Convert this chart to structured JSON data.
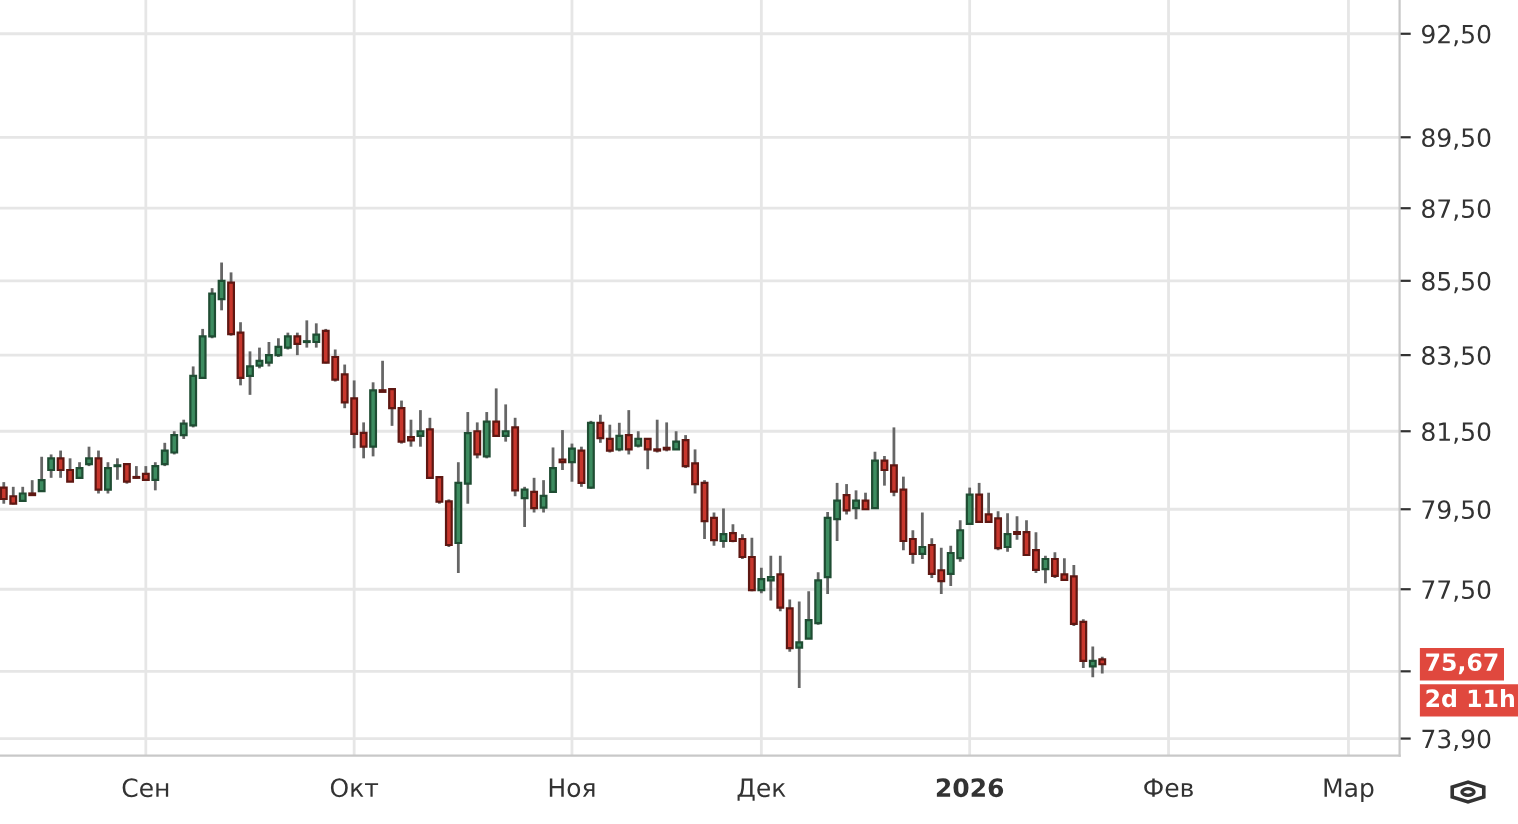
{
  "chart_data": {
    "type": "candlestick",
    "categories": [
      null,
      null,
      null,
      null,
      null,
      null,
      null,
      null,
      null,
      null,
      null,
      null,
      null,
      null,
      null,
      "Сен",
      null,
      null,
      null,
      null,
      null,
      null,
      null,
      null,
      null,
      null,
      null,
      null,
      null,
      null,
      null,
      null,
      null,
      null,
      null,
      null,
      null,
      "Окт",
      null,
      null,
      null,
      null,
      null,
      null,
      null,
      null,
      null,
      null,
      null,
      null,
      null,
      null,
      null,
      null,
      null,
      null,
      null,
      null,
      null,
      null,
      "Ноя",
      null,
      null,
      null,
      null,
      null,
      null,
      null,
      null,
      null,
      null,
      null,
      null,
      null,
      null,
      null,
      null,
      null,
      null,
      null,
      "Дек",
      null,
      null,
      null,
      null,
      null,
      null,
      null,
      null,
      null,
      null,
      null,
      null,
      null,
      null,
      null,
      null,
      null,
      null,
      null,
      null,
      null,
      "2026",
      null,
      null,
      null,
      null,
      null,
      null,
      null,
      null,
      null,
      null,
      null,
      null,
      null,
      null,
      null,
      null,
      null,
      null,
      null,
      null,
      "Фев",
      null,
      null,
      null,
      null,
      null,
      null,
      null,
      null,
      null,
      null,
      null,
      null,
      null,
      null,
      null,
      null,
      null,
      null,
      "Мар",
      null,
      null,
      null,
      null,
      null
    ],
    "ohlc": [
      [
        80.05,
        80.19,
        79.64,
        79.76
      ],
      [
        79.83,
        80.07,
        79.62,
        79.64
      ],
      [
        79.71,
        80.07,
        79.69,
        79.9
      ],
      [
        79.9,
        80.24,
        79.86,
        79.86
      ],
      [
        79.96,
        80.84,
        79.96,
        80.24
      ],
      [
        80.5,
        80.9,
        80.3,
        80.8
      ],
      [
        80.8,
        81.0,
        80.3,
        80.5
      ],
      [
        80.5,
        80.8,
        80.2,
        80.2
      ],
      [
        80.3,
        80.7,
        80.3,
        80.55
      ],
      [
        80.65,
        81.1,
        80.6,
        80.8
      ],
      [
        80.8,
        81.0,
        79.9,
        80.0
      ],
      [
        80.0,
        80.7,
        79.9,
        80.55
      ],
      [
        80.6,
        80.8,
        80.25,
        80.62
      ],
      [
        80.65,
        80.65,
        80.15,
        80.2
      ],
      [
        80.32,
        80.6,
        80.28,
        80.3
      ],
      [
        80.4,
        80.6,
        80.25,
        80.25
      ],
      [
        80.25,
        80.7,
        79.98,
        80.6
      ],
      [
        80.65,
        81.2,
        80.6,
        81.0
      ],
      [
        80.95,
        81.5,
        80.9,
        81.4
      ],
      [
        81.4,
        81.8,
        81.3,
        81.7
      ],
      [
        81.65,
        83.2,
        81.6,
        82.95
      ],
      [
        82.9,
        84.2,
        82.9,
        84.0
      ],
      [
        84.0,
        85.3,
        83.95,
        85.15
      ],
      [
        85.0,
        86.0,
        84.7,
        85.5
      ],
      [
        85.45,
        85.73,
        84.02,
        84.06
      ],
      [
        84.1,
        84.38,
        82.7,
        82.9
      ],
      [
        82.95,
        83.6,
        82.45,
        83.2
      ],
      [
        83.22,
        83.7,
        83.15,
        83.35
      ],
      [
        83.3,
        83.85,
        83.2,
        83.5
      ],
      [
        83.5,
        83.95,
        83.45,
        83.72
      ],
      [
        83.7,
        84.1,
        83.65,
        84.0
      ],
      [
        84.0,
        84.1,
        83.5,
        83.8
      ],
      [
        83.85,
        84.43,
        83.7,
        83.87
      ],
      [
        83.85,
        84.35,
        83.7,
        84.05
      ],
      [
        84.15,
        84.2,
        83.28,
        83.3
      ],
      [
        83.45,
        83.65,
        82.8,
        82.85
      ],
      [
        82.99,
        83.25,
        82.1,
        82.25
      ],
      [
        82.36,
        82.83,
        81.06,
        81.43
      ],
      [
        81.46,
        81.73,
        80.8,
        81.1
      ],
      [
        81.1,
        82.78,
        80.85,
        82.57
      ],
      [
        82.57,
        83.35,
        82.53,
        82.53
      ],
      [
        82.6,
        82.6,
        81.64,
        82.1
      ],
      [
        82.1,
        82.3,
        81.18,
        81.23
      ],
      [
        81.35,
        81.8,
        81.1,
        81.26
      ],
      [
        81.38,
        82.05,
        81.1,
        81.5
      ],
      [
        81.55,
        81.85,
        80.3,
        80.3
      ],
      [
        80.32,
        80.33,
        79.64,
        79.69
      ],
      [
        79.7,
        79.75,
        78.55,
        78.6
      ],
      [
        78.65,
        80.7,
        77.9,
        80.17
      ],
      [
        80.15,
        82.0,
        79.64,
        81.45
      ],
      [
        81.5,
        81.73,
        80.8,
        80.9
      ],
      [
        80.85,
        82.0,
        80.8,
        81.75
      ],
      [
        81.75,
        82.62,
        81.38,
        81.38
      ],
      [
        81.38,
        82.2,
        81.23,
        81.5
      ],
      [
        81.6,
        81.85,
        79.83,
        79.98
      ],
      [
        79.78,
        80.07,
        79.05,
        80.0
      ],
      [
        79.94,
        80.3,
        79.42,
        79.53
      ],
      [
        79.54,
        80.24,
        79.42,
        79.84
      ],
      [
        79.94,
        81.08,
        79.94,
        80.55
      ],
      [
        80.77,
        81.53,
        80.5,
        80.7
      ],
      [
        80.7,
        81.18,
        80.2,
        81.05
      ],
      [
        81.0,
        81.1,
        80.07,
        80.17
      ],
      [
        80.05,
        81.77,
        80.02,
        81.72
      ],
      [
        81.72,
        81.93,
        81.2,
        81.32
      ],
      [
        81.3,
        81.67,
        80.95,
        81.0
      ],
      [
        81.03,
        81.72,
        80.98,
        81.38
      ],
      [
        81.4,
        82.05,
        80.9,
        81.03
      ],
      [
        81.13,
        81.5,
        81.08,
        81.3
      ],
      [
        81.3,
        81.3,
        80.52,
        81.03
      ],
      [
        81.03,
        81.8,
        80.95,
        81.0
      ],
      [
        81.07,
        81.73,
        80.98,
        81.03
      ],
      [
        81.03,
        81.5,
        81.03,
        81.23
      ],
      [
        81.27,
        81.4,
        80.55,
        80.6
      ],
      [
        80.67,
        81.03,
        79.9,
        80.14
      ],
      [
        80.17,
        80.24,
        78.75,
        79.2
      ],
      [
        79.28,
        79.42,
        78.58,
        78.72
      ],
      [
        78.7,
        79.52,
        78.53,
        78.87
      ],
      [
        78.9,
        79.12,
        78.67,
        78.7
      ],
      [
        78.75,
        78.87,
        78.25,
        78.3
      ],
      [
        78.3,
        78.78,
        77.45,
        77.48
      ],
      [
        77.48,
        78.03,
        77.4,
        77.75
      ],
      [
        77.72,
        78.33,
        77.22,
        77.8
      ],
      [
        77.87,
        78.33,
        76.96,
        77.05
      ],
      [
        77.03,
        77.25,
        75.97,
        76.06
      ],
      [
        76.07,
        77.2,
        75.1,
        76.2
      ],
      [
        76.29,
        77.45,
        76.29,
        76.74
      ],
      [
        76.67,
        77.92,
        76.63,
        77.72
      ],
      [
        77.8,
        79.43,
        77.38,
        79.28
      ],
      [
        79.25,
        80.17,
        78.7,
        79.72
      ],
      [
        79.86,
        80.14,
        79.37,
        79.47
      ],
      [
        79.53,
        79.98,
        79.25,
        79.72
      ],
      [
        79.72,
        79.92,
        79.5,
        79.5
      ],
      [
        79.53,
        80.97,
        79.53,
        80.74
      ],
      [
        80.74,
        80.86,
        80.1,
        80.5
      ],
      [
        80.62,
        81.6,
        79.83,
        79.95
      ],
      [
        80.0,
        80.33,
        78.47,
        78.7
      ],
      [
        78.75,
        78.97,
        78.13,
        78.38
      ],
      [
        78.38,
        79.42,
        78.25,
        78.55
      ],
      [
        78.6,
        78.77,
        77.78,
        77.88
      ],
      [
        77.97,
        78.53,
        77.38,
        77.7
      ],
      [
        77.88,
        78.58,
        77.58,
        78.4
      ],
      [
        78.27,
        79.22,
        78.18,
        78.97
      ],
      [
        79.13,
        80.05,
        79.13,
        79.87
      ],
      [
        79.87,
        80.17,
        79.18,
        79.18
      ],
      [
        79.37,
        79.92,
        79.18,
        79.18
      ],
      [
        79.27,
        79.45,
        78.47,
        78.52
      ],
      [
        78.55,
        79.4,
        78.43,
        78.87
      ],
      [
        78.92,
        79.32,
        78.73,
        78.88
      ],
      [
        78.92,
        79.22,
        78.35,
        78.35
      ],
      [
        78.47,
        78.92,
        77.9,
        77.98
      ],
      [
        78.0,
        78.33,
        77.65,
        78.25
      ],
      [
        78.25,
        78.42,
        77.78,
        77.83
      ],
      [
        77.87,
        78.27,
        77.73,
        77.73
      ],
      [
        77.82,
        78.1,
        76.6,
        76.65
      ],
      [
        76.7,
        76.76,
        75.58,
        75.75
      ],
      [
        75.62,
        76.1,
        75.36,
        75.75
      ],
      [
        75.79,
        75.85,
        75.45,
        75.67
      ],
      null,
      null,
      null,
      null,
      null,
      null,
      null,
      null,
      null,
      null,
      null,
      null,
      null,
      null,
      null,
      null,
      null,
      null,
      null,
      null,
      null,
      null,
      null,
      null,
      null,
      null,
      null,
      null,
      null,
      null,
      null
    ],
    "log": true,
    "ylim": [
      73.5,
      93.5
    ],
    "yticks": [
      {
        "value": 73.9,
        "label": "73,90"
      },
      {
        "value": 75.5,
        "label": null
      },
      {
        "value": 77.5,
        "label": "77,50"
      },
      {
        "value": 79.5,
        "label": "79,50"
      },
      {
        "value": 81.5,
        "label": "81,50"
      },
      {
        "value": 83.5,
        "label": "83,50"
      },
      {
        "value": 85.5,
        "label": "85,50"
      },
      {
        "value": 87.5,
        "label": "87,50"
      },
      {
        "value": 89.5,
        "label": "89,50"
      },
      {
        "value": 92.5,
        "label": "92,50"
      }
    ],
    "grid": true,
    "annotations": [
      "75,67",
      "2d 11h"
    ]
  }
}
